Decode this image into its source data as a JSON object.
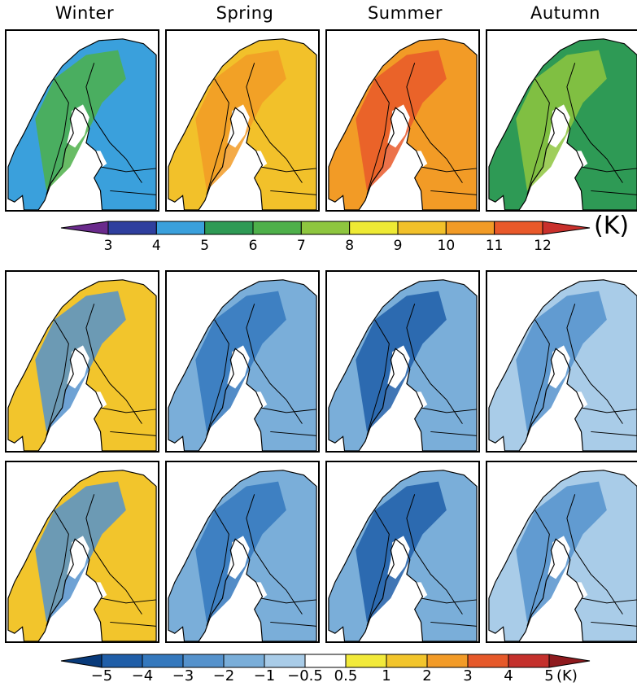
{
  "seasons": [
    "Winter",
    "Spring",
    "Summer",
    "Autumn"
  ],
  "top_colorbar": {
    "ticks": [
      "3",
      "4",
      "5",
      "6",
      "7",
      "8",
      "9",
      "10",
      "11",
      "12"
    ],
    "unit": "(K)",
    "colors": [
      "#6a2a8c",
      "#2f3f9e",
      "#3aa0dc",
      "#2e9a55",
      "#4eb04a",
      "#8ec63f",
      "#eeea34",
      "#f2c12a",
      "#f29b26",
      "#e9592a",
      "#c9302c"
    ]
  },
  "bottom_colorbar": {
    "ticks": [
      "−5",
      "−4",
      "−3",
      "−2",
      "−1",
      "−0.5",
      "0.5",
      "1",
      "2",
      "3",
      "4",
      "5"
    ],
    "unit": "(K)",
    "colors": [
      "#083a7a",
      "#1f5ea8",
      "#3478bd",
      "#5592cc",
      "#7aaed9",
      "#a9cce8",
      "#ffffff",
      "#f2ea3a",
      "#f2c52c",
      "#f29b28",
      "#e6592a",
      "#c4302c",
      "#8e1a1e"
    ]
  },
  "rows": [
    {
      "fills": [
        "#3aa0dc",
        "#f2c12a",
        "#f29b26",
        "#2e9a55"
      ],
      "land": [
        "#4eb04a",
        "#f29b26",
        "#e9592a",
        "#8ec63f"
      ]
    },
    {
      "fills": [
        "#f2c52c",
        "#7aaed9",
        "#7aaed9",
        "#a9cce8"
      ],
      "land": [
        "#5592cc",
        "#3478bd",
        "#1f5ea8",
        "#5592cc"
      ]
    },
    {
      "fills": [
        "#f2c52c",
        "#7aaed9",
        "#7aaed9",
        "#a9cce8"
      ],
      "land": [
        "#5592cc",
        "#3478bd",
        "#1f5ea8",
        "#5592cc"
      ]
    }
  ]
}
